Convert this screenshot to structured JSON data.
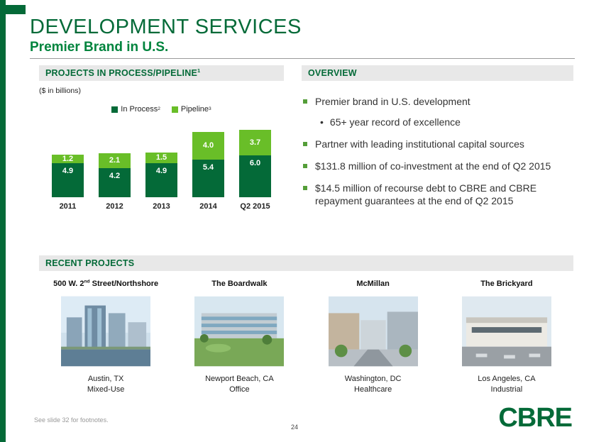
{
  "slide": {
    "title": "DEVELOPMENT SERVICES",
    "subtitle": "Premier Brand in U.S.",
    "footnote": "See slide 32 for footnotes.",
    "page_number": "24",
    "logo_text": "CBRE"
  },
  "colors": {
    "dark_green": "#046A38",
    "light_green": "#69BE28",
    "subtitle_green": "#00843D",
    "section_header_bg": "#E8E8E8",
    "bullet_green": "#549E39"
  },
  "chart_section": {
    "header": "PROJECTS IN PROCESS/PIPELINE",
    "header_sup": "1",
    "units_label": "($ in billions)",
    "legend_sups": [
      "2",
      "3"
    ]
  },
  "chart_data": {
    "type": "bar",
    "stacked": true,
    "categories": [
      "2011",
      "2012",
      "2013",
      "2014",
      "Q2 2015"
    ],
    "series": [
      {
        "name": "In Process",
        "color": "#046A38",
        "values": [
          4.9,
          4.2,
          4.9,
          5.4,
          6.0
        ]
      },
      {
        "name": "Pipeline",
        "color": "#69BE28",
        "values": [
          1.2,
          2.1,
          1.5,
          4.0,
          3.7
        ]
      }
    ],
    "ylim": [
      0,
      10
    ],
    "value_labels": true,
    "legend_position": "top",
    "title": "PROJECTS IN PROCESS/PIPELINE",
    "xlabel": "",
    "ylabel": "($ in billions)"
  },
  "overview": {
    "header": "OVERVIEW",
    "bullets": [
      {
        "text": "Premier brand in U.S. development",
        "sub": [
          "65+ year record of excellence"
        ]
      },
      {
        "text": "Partner with leading institutional capital sources",
        "sub": []
      },
      {
        "text": "$131.8 million of co-investment at the end of Q2 2015",
        "sub": []
      },
      {
        "text": "$14.5 million of recourse debt to CBRE and CBRE repayment guarantees at the end of Q2 2015",
        "sub": []
      }
    ]
  },
  "projects": {
    "header": "RECENT PROJECTS",
    "items": [
      {
        "name_pre": "500 W. 2",
        "name_sup": "nd",
        "name_post": " Street/Northshore",
        "location": "Austin, TX",
        "type": "Mixed-Use"
      },
      {
        "name_pre": "The Boardwalk",
        "name_sup": "",
        "name_post": "",
        "location": "Newport Beach, CA",
        "type": "Office"
      },
      {
        "name_pre": "McMillan",
        "name_sup": "",
        "name_post": "",
        "location": "Washington, DC",
        "type": "Healthcare"
      },
      {
        "name_pre": "The Brickyard",
        "name_sup": "",
        "name_post": "",
        "location": "Los Angeles, CA",
        "type": "Industrial"
      }
    ]
  }
}
